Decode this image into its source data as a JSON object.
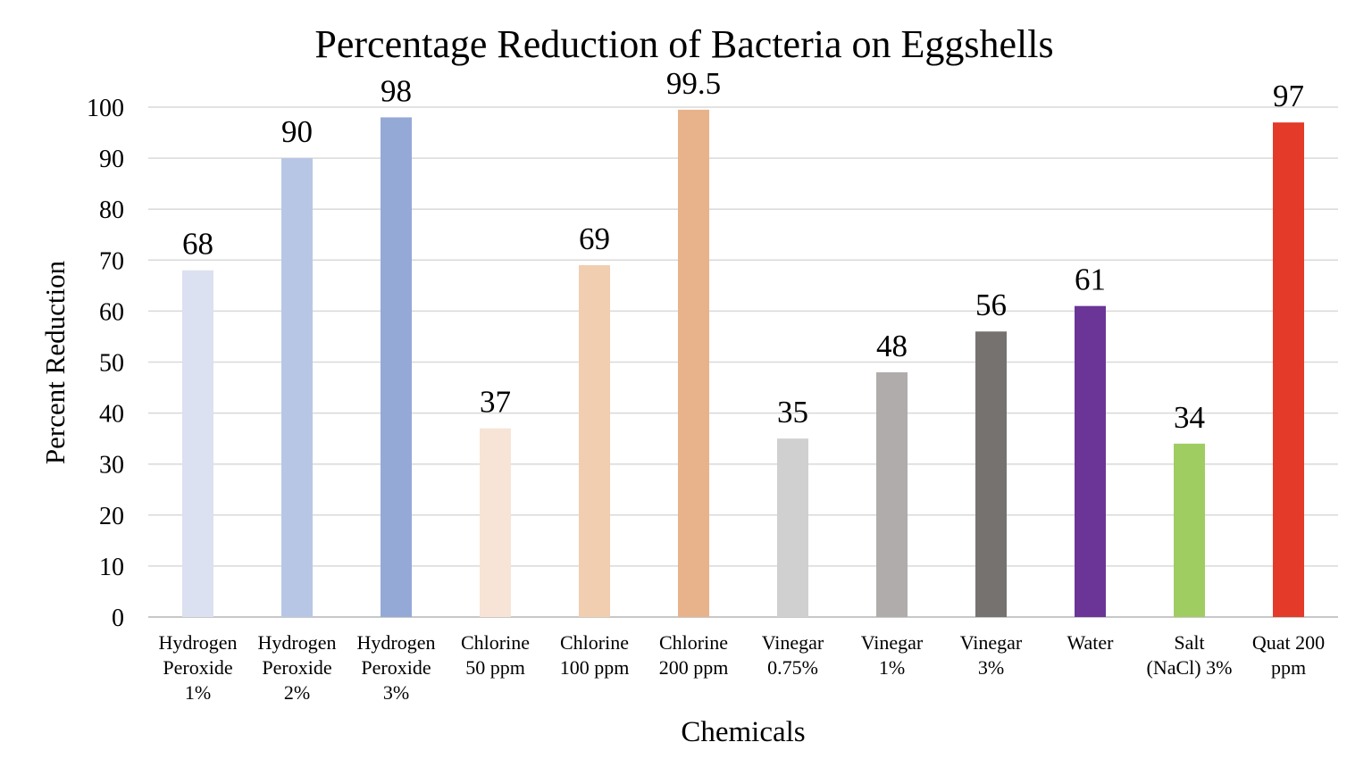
{
  "chart_data": {
    "type": "bar",
    "title": "Percentage Reduction of Bacteria on Eggshells",
    "xlabel": "Chemicals",
    "ylabel": "Percent Reduction",
    "ylim": [
      0,
      100
    ],
    "yticks": [
      0,
      10,
      20,
      30,
      40,
      50,
      60,
      70,
      80,
      90,
      100
    ],
    "grid": true,
    "legend": "none",
    "categories": [
      [
        "Hydrogen",
        "Peroxide",
        "1%"
      ],
      [
        "Hydrogen",
        "Peroxide",
        "2%"
      ],
      [
        "Hydrogen",
        "Peroxide",
        "3%"
      ],
      [
        "Chlorine",
        "50 ppm"
      ],
      [
        "Chlorine",
        "100 ppm"
      ],
      [
        "Chlorine",
        "200 ppm"
      ],
      [
        "Vinegar",
        "0.75%"
      ],
      [
        "Vinegar",
        "1%"
      ],
      [
        "Vinegar",
        "3%"
      ],
      [
        "Water"
      ],
      [
        "Salt",
        "(NaCl) 3%"
      ],
      [
        "Quat 200",
        "ppm"
      ]
    ],
    "values": [
      68,
      90,
      98,
      37,
      69,
      99.5,
      35,
      48,
      56,
      61,
      34,
      97
    ],
    "data_labels": [
      "68",
      "90",
      "98",
      "37",
      "69",
      "99.5",
      "35",
      "48",
      "56",
      "61",
      "34",
      "97"
    ],
    "colors": [
      "#dce1f1",
      "#b8c6e6",
      "#95a9d7",
      "#f7e4d6",
      "#f1ceb0",
      "#e8b38a",
      "#d1d0d1",
      "#afacab",
      "#767270",
      "#6a3597",
      "#9fcd62",
      "#e33a2a"
    ]
  }
}
